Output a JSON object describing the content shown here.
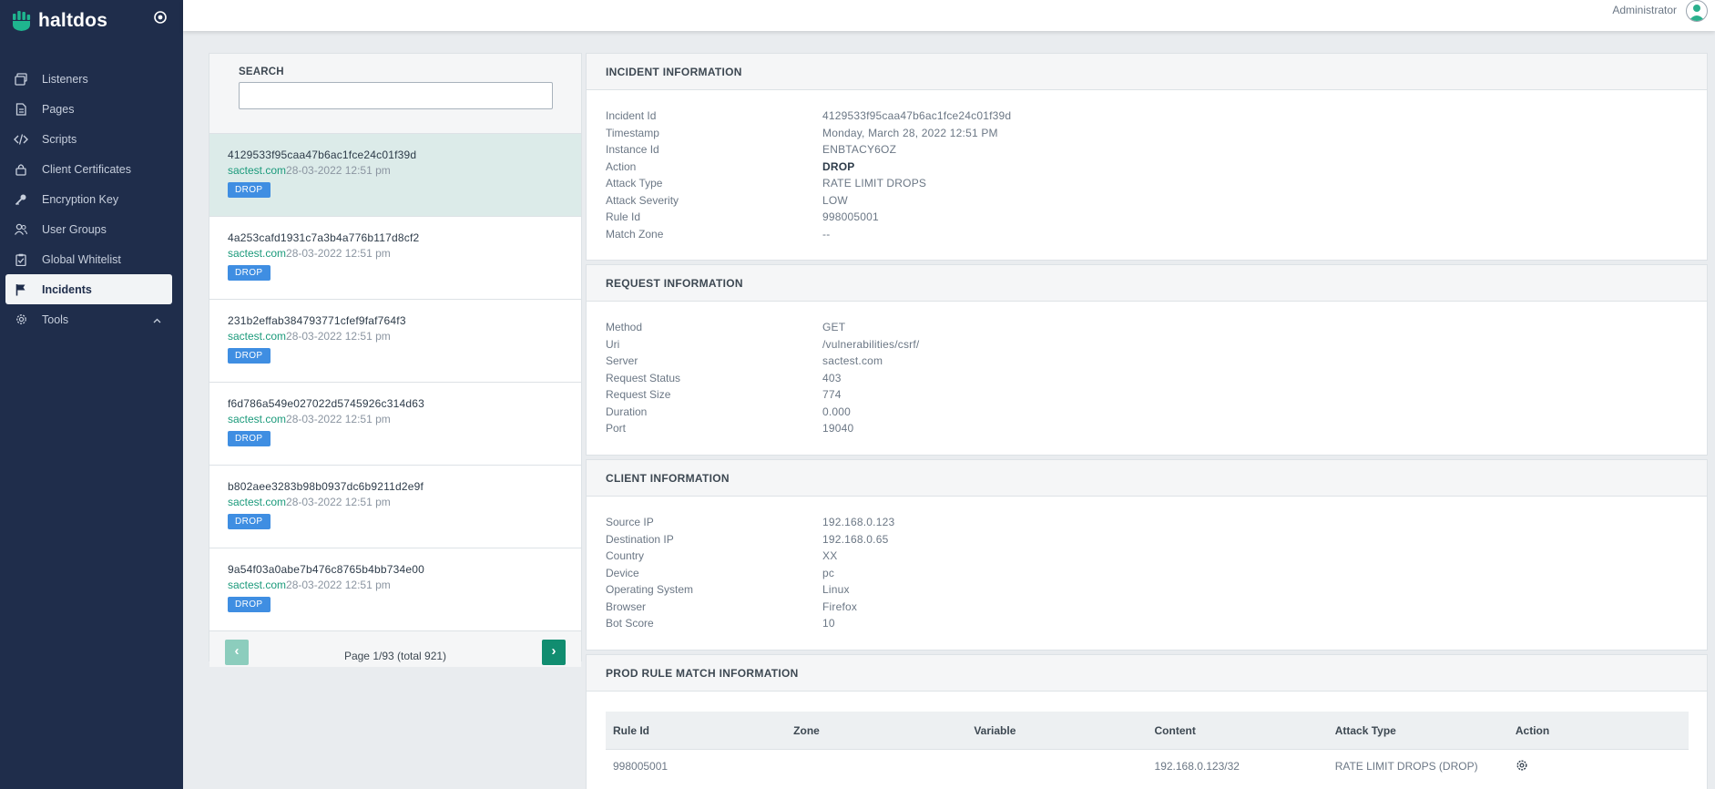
{
  "brand": {
    "name": "haltdos"
  },
  "sidebar": {
    "items": [
      {
        "label": "Listeners",
        "icon": "window-stack-icon"
      },
      {
        "label": "Pages",
        "icon": "document-icon"
      },
      {
        "label": "Scripts",
        "icon": "code-icon"
      },
      {
        "label": "Client Certificates",
        "icon": "lock-icon"
      },
      {
        "label": "Encryption Key",
        "icon": "key-icon"
      },
      {
        "label": "User Groups",
        "icon": "users-icon"
      },
      {
        "label": "Global Whitelist",
        "icon": "clipboard-check-icon"
      },
      {
        "label": "Incidents",
        "icon": "flag-icon",
        "active": true
      },
      {
        "label": "Tools",
        "icon": "gear-icon"
      }
    ]
  },
  "topbar": {
    "user": "Administrator"
  },
  "search": {
    "label": "SEARCH",
    "placeholder": ""
  },
  "incidents": [
    {
      "id": "4129533f95caa47b6ac1fce24c01f39d",
      "host": "sactest.com",
      "time": "28-03-2022 12:51 pm",
      "badge": "DROP"
    },
    {
      "id": "4a253cafd1931c7a3b4a776b117d8cf2",
      "host": "sactest.com",
      "time": "28-03-2022 12:51 pm",
      "badge": "DROP"
    },
    {
      "id": "231b2effab384793771cfef9faf764f3",
      "host": "sactest.com",
      "time": "28-03-2022 12:51 pm",
      "badge": "DROP"
    },
    {
      "id": "f6d786a549e027022d5745926c314d63",
      "host": "sactest.com",
      "time": "28-03-2022 12:51 pm",
      "badge": "DROP"
    },
    {
      "id": "b802aee3283b98b0937dc6b9211d2e9f",
      "host": "sactest.com",
      "time": "28-03-2022 12:51 pm",
      "badge": "DROP"
    },
    {
      "id": "9a54f03a0abe7b476c8765b4bb734e00",
      "host": "sactest.com",
      "time": "28-03-2022 12:51 pm",
      "badge": "DROP"
    }
  ],
  "pager": {
    "prev": "‹",
    "next": "›",
    "text": "Page 1/93 (total 921)"
  },
  "incident_info": {
    "title": "INCIDENT INFORMATION",
    "rows": [
      {
        "key": "Incident Id",
        "value": "4129533f95caa47b6ac1fce24c01f39d"
      },
      {
        "key": "Timestamp",
        "value": "Monday, March 28, 2022 12:51 PM"
      },
      {
        "key": "Instance Id",
        "value": "ENBTACY6OZ"
      },
      {
        "key": "Action",
        "value": "DROP"
      },
      {
        "key": "Attack Type",
        "value": "RATE LIMIT DROPS"
      },
      {
        "key": "Attack Severity",
        "value": "LOW"
      },
      {
        "key": "Rule Id",
        "value": "998005001"
      },
      {
        "key": "Match Zone",
        "value": "--"
      }
    ]
  },
  "request_info": {
    "title": "REQUEST INFORMATION",
    "rows": [
      {
        "key": "Method",
        "value": "GET"
      },
      {
        "key": "Uri",
        "value": "/vulnerabilities/csrf/"
      },
      {
        "key": "Server",
        "value": "sactest.com"
      },
      {
        "key": "Request Status",
        "value": "403"
      },
      {
        "key": "Request Size",
        "value": "774"
      },
      {
        "key": "Duration",
        "value": "0.000"
      },
      {
        "key": "Port",
        "value": "19040"
      }
    ]
  },
  "client_info": {
    "title": "CLIENT INFORMATION",
    "rows": [
      {
        "key": "Source IP",
        "value": "192.168.0.123"
      },
      {
        "key": "Destination IP",
        "value": "192.168.0.65"
      },
      {
        "key": "Country",
        "value": "XX"
      },
      {
        "key": "Device",
        "value": "pc"
      },
      {
        "key": "Operating System",
        "value": "Linux"
      },
      {
        "key": "Browser",
        "value": "Firefox"
      },
      {
        "key": "Bot Score",
        "value": "10"
      }
    ]
  },
  "rule_match": {
    "title": "PROD RULE MATCH INFORMATION",
    "columns": [
      "Rule Id",
      "Zone",
      "Variable",
      "Content",
      "Attack Type",
      "Action"
    ],
    "rows": [
      {
        "rule_id": "998005001",
        "zone": "",
        "variable": "",
        "content": "192.168.0.123/32",
        "attack_type": "RATE LIMIT DROPS (DROP)",
        "action_icon": "gear-icon"
      }
    ]
  }
}
